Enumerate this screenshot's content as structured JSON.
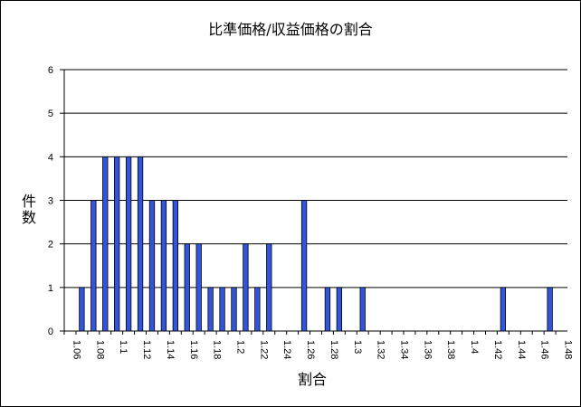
{
  "chart_data": {
    "type": "bar",
    "title": "比準価格/収益価格の割合",
    "xlabel": "割合",
    "ylabel": "件数",
    "ylim": [
      0,
      6
    ],
    "y_ticks": [
      "0",
      "1",
      "2",
      "3",
      "4",
      "5",
      "6"
    ],
    "x_tick_labels": [
      "1.06",
      "1.08",
      "1.1",
      "1.12",
      "1.14",
      "1.16",
      "1.18",
      "1.2",
      "1.22",
      "1.24",
      "1.26",
      "1.28",
      "1.3",
      "1.32",
      "1.34",
      "1.36",
      "1.38",
      "1.4",
      "1.42",
      "1.44",
      "1.46",
      "1.48"
    ],
    "categories": [
      "1.06",
      "1.07",
      "1.08",
      "1.09",
      "1.1",
      "1.11",
      "1.12",
      "1.13",
      "1.14",
      "1.15",
      "1.16",
      "1.17",
      "1.18",
      "1.19",
      "1.2",
      "1.21",
      "1.22",
      "1.23",
      "1.24",
      "1.25",
      "1.26",
      "1.27",
      "1.28",
      "1.29",
      "1.3",
      "1.31",
      "1.32",
      "1.33",
      "1.34",
      "1.35",
      "1.36",
      "1.37",
      "1.38",
      "1.39",
      "1.4",
      "1.41",
      "1.42",
      "1.43",
      "1.44",
      "1.45",
      "1.46",
      "1.47",
      "1.48"
    ],
    "values": [
      0,
      1,
      3,
      4,
      4,
      4,
      4,
      3,
      3,
      3,
      2,
      2,
      1,
      1,
      1,
      2,
      1,
      2,
      0,
      0,
      3,
      0,
      1,
      1,
      0,
      1,
      0,
      0,
      0,
      0,
      0,
      0,
      0,
      0,
      0,
      0,
      0,
      1,
      0,
      0,
      0,
      1,
      0
    ],
    "bar_color": "#3355dd",
    "grid": true,
    "legend": "none"
  }
}
